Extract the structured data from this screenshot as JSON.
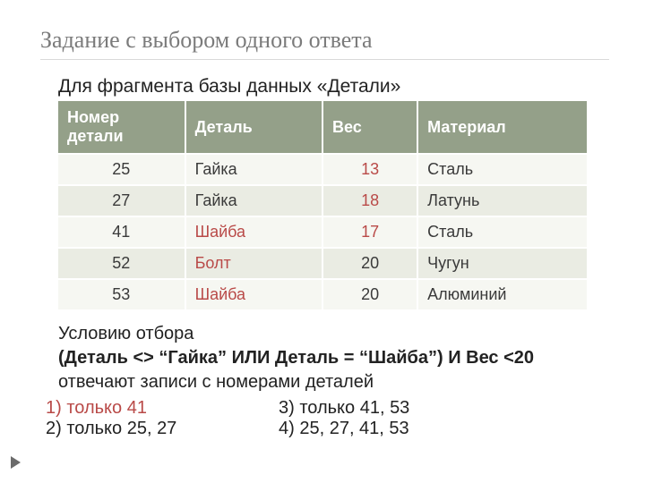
{
  "title": "Задание с выбором одного ответа",
  "prompt": "Для фрагмента базы данных «Детали»",
  "table": {
    "columns": [
      "Номер детали",
      "Деталь",
      "Вес",
      "Материал"
    ],
    "col_widths": [
      "24%",
      "26%",
      "18%",
      "32%"
    ],
    "header_bg": "#94a089",
    "header_color": "#ffffff",
    "row_bg_odd": "#f6f7f2",
    "row_bg_even": "#eaece3",
    "accent_color": "#b94a48",
    "rows": [
      {
        "num": "25",
        "part": "Гайка",
        "part_accent": false,
        "weight": "13",
        "weight_accent": true,
        "material": "Сталь"
      },
      {
        "num": "27",
        "part": "Гайка",
        "part_accent": false,
        "weight": "18",
        "weight_accent": true,
        "material": "Латунь"
      },
      {
        "num": "41",
        "part": "Шайба",
        "part_accent": true,
        "weight": "17",
        "weight_accent": true,
        "material": "Сталь"
      },
      {
        "num": "52",
        "part": "Болт",
        "part_accent": true,
        "weight": "20",
        "weight_accent": false,
        "material": "Чугун"
      },
      {
        "num": "53",
        "part": "Шайба",
        "part_accent": true,
        "weight": "20",
        "weight_accent": false,
        "material": "Алюминий"
      }
    ]
  },
  "condition": {
    "line1": "Условию отбора",
    "line2": "(Деталь <> “Гайка” ИЛИ Деталь = “Шайба”) И Вес <20",
    "line3": "отвечают записи с номерами деталей"
  },
  "answers": {
    "opt1": "1) только 41",
    "opt2": "2) только 25, 27",
    "opt3": "3) только 41, 53",
    "opt4": "4) 25, 27, 41, 53",
    "opt1_accent": true
  },
  "colors": {
    "title": "#7b7b7b",
    "text": "#222222",
    "accent": "#b94a48",
    "background": "#ffffff"
  },
  "fonts": {
    "title_family": "Georgia",
    "body_family": "Arial",
    "title_size": 26,
    "body_size": 20,
    "table_size": 18
  }
}
